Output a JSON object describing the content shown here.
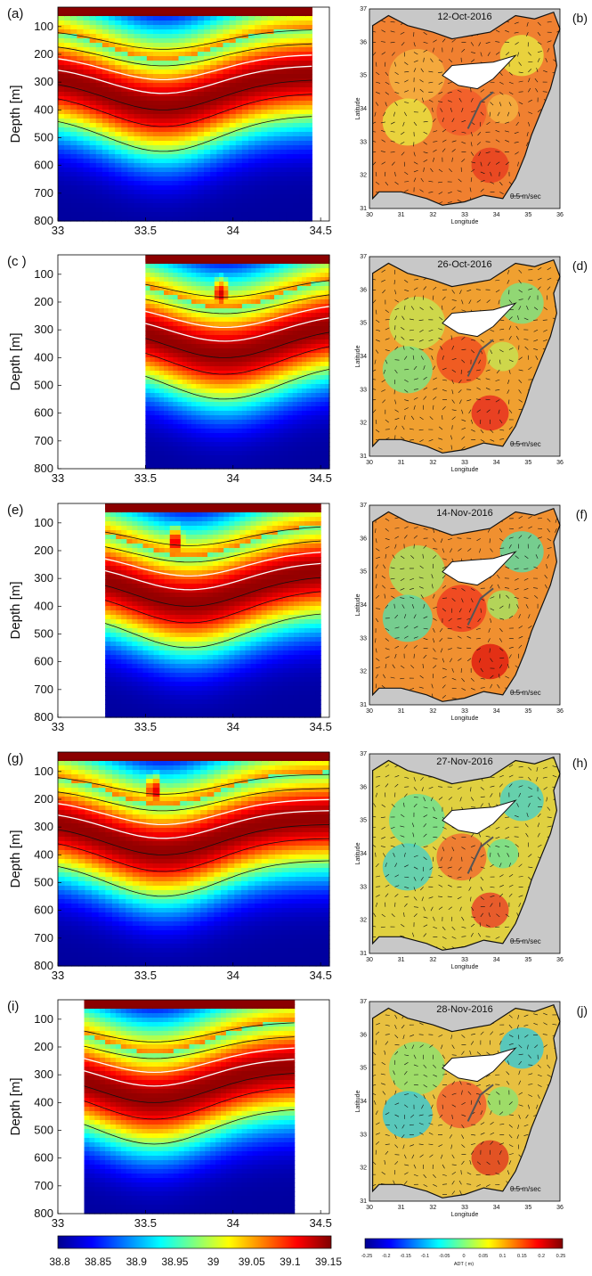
{
  "chart_data": {
    "type": "heatmap",
    "section_panels": [
      {
        "label": "(a)",
        "ylabel": "Depth [m]",
        "y_ticks": [
          100,
          200,
          300,
          400,
          500,
          600,
          700,
          800
        ],
        "x_ticks": [
          33,
          33.5,
          34,
          34.5
        ],
        "xlim": [
          33,
          34.55
        ],
        "ylim": [
          30,
          800
        ],
        "data_xrange": [
          33,
          34.45
        ],
        "dome_center": 33.6,
        "eddy_x": null
      },
      {
        "label": "(c )",
        "ylabel": "Depth [m]",
        "y_ticks": [
          100,
          200,
          300,
          400,
          500,
          600,
          700,
          800
        ],
        "x_ticks": [
          33,
          33.5,
          34,
          34.5
        ],
        "xlim": [
          33,
          34.55
        ],
        "ylim": [
          30,
          800
        ],
        "data_xrange": [
          33.5,
          34.55
        ],
        "dome_center": 33.95,
        "eddy_x": 33.93
      },
      {
        "label": "(e)",
        "ylabel": "Depth [m]",
        "y_ticks": [
          100,
          200,
          300,
          400,
          500,
          600,
          700,
          800
        ],
        "x_ticks": [
          33,
          33.5,
          34,
          34.5
        ],
        "xlim": [
          33,
          34.55
        ],
        "ylim": [
          30,
          800
        ],
        "data_xrange": [
          33.27,
          34.5
        ],
        "dome_center": 33.75,
        "eddy_x": 33.67
      },
      {
        "label": "(g)",
        "ylabel": "Depth [m]",
        "y_ticks": [
          100,
          200,
          300,
          400,
          500,
          600,
          700,
          800
        ],
        "x_ticks": [
          33,
          33.5,
          34,
          34.5
        ],
        "xlim": [
          33,
          34.55
        ],
        "ylim": [
          30,
          800
        ],
        "data_xrange": [
          33,
          34.55
        ],
        "dome_center": 33.6,
        "eddy_x": 33.55
      },
      {
        "label": "(i)",
        "ylabel": "Depth [m]",
        "y_ticks": [
          100,
          200,
          300,
          400,
          500,
          600,
          700,
          800
        ],
        "x_ticks": [
          33,
          33.5,
          34,
          34.5
        ],
        "xlim": [
          33,
          34.55
        ],
        "ylim": [
          30,
          800
        ],
        "data_xrange": [
          33.15,
          34.35
        ],
        "dome_center": 33.55,
        "eddy_x": null
      }
    ],
    "salinity_colorbar": {
      "ticks": [
        "38.8",
        "38.85",
        "38.9",
        "38.95",
        "39",
        "39.05",
        "39.1",
        "39.15"
      ],
      "range": [
        38.8,
        39.15
      ]
    },
    "map_panels": [
      {
        "label": "(b)",
        "date": "12-Oct-2016",
        "scale_label": "0.5 m/sec",
        "xlabel": "Longitude",
        "ylabel": "Latitude"
      },
      {
        "label": "(d)",
        "date": "26-Oct-2016",
        "scale_label": "0.5 m/sec",
        "xlabel": "Longitude",
        "ylabel": "Latitude"
      },
      {
        "label": "(f)",
        "date": "14-Nov-2016",
        "scale_label": "0.5 m/sec",
        "xlabel": "Longitude",
        "ylabel": "Latitude"
      },
      {
        "label": "(h)",
        "date": "27-Nov-2016",
        "scale_label": "0.5 m/sec",
        "xlabel": "Longitude",
        "ylabel": "Latitude"
      },
      {
        "label": "(j)",
        "date": "28-Nov-2016",
        "scale_label": "0.5 m/sec",
        "xlabel": "Longitude",
        "ylabel": "Latitude"
      }
    ],
    "map_axes": {
      "x_ticks": [
        "30",
        "31",
        "32",
        "33",
        "34",
        "35",
        "36"
      ],
      "y_ticks": [
        "31",
        "32",
        "33",
        "34",
        "35",
        "36",
        "37"
      ],
      "xlim": [
        30,
        36
      ],
      "ylim": [
        31,
        37
      ]
    },
    "adt_colorbar": {
      "ticks": [
        "-0.25",
        "-0.2",
        "-0.15",
        "-0.1",
        "-0.05",
        "0",
        "0.05",
        "0.1",
        "0.15",
        "0.2",
        "0.25"
      ],
      "label": "ADT ( m)",
      "range": [
        -0.25,
        0.25
      ]
    }
  },
  "colors": {
    "land": "#c8c8c8",
    "coast": "#111111",
    "section_top": "#8b0000",
    "white": "#ffffff"
  }
}
